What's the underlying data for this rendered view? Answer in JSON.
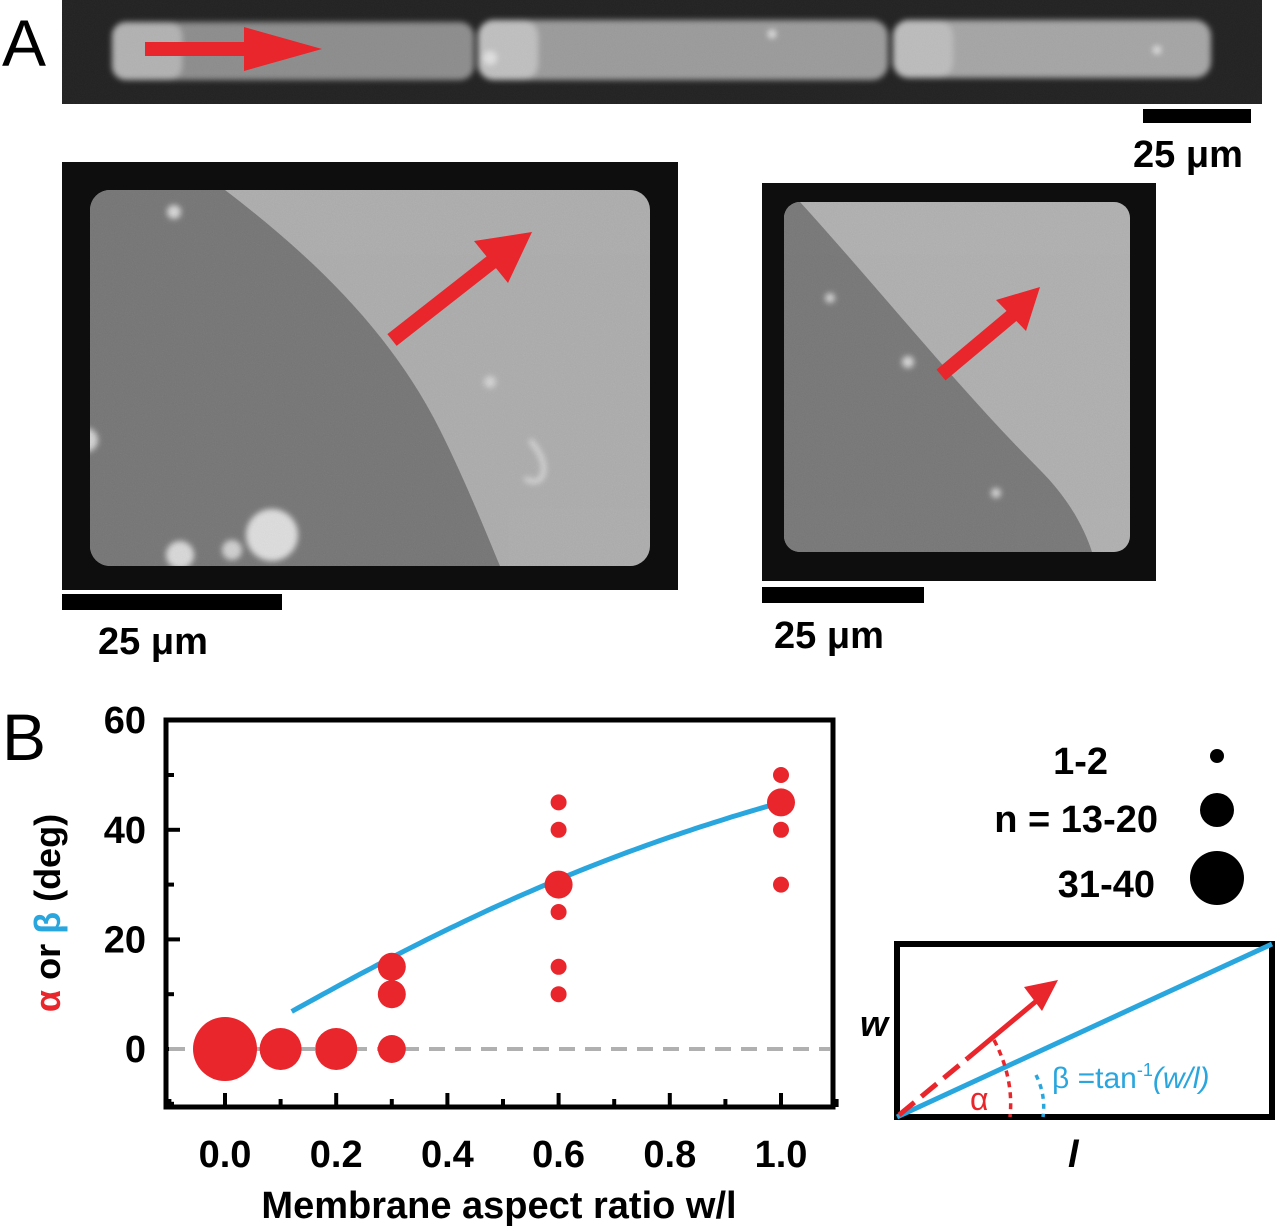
{
  "panel_a": {
    "label": "A",
    "scale_bar_label_top": "25 μm",
    "scale_bar_label_left": "25 μm",
    "scale_bar_label_right": "25 μm"
  },
  "panel_b": {
    "label": "B",
    "size_legend": {
      "rows": [
        {
          "label": "1-2",
          "size_class": "small"
        },
        {
          "label": "n = 13-20",
          "size_class": "medium"
        },
        {
          "label": "31-40",
          "size_class": "large"
        }
      ]
    },
    "inset": {
      "w_label": "w",
      "l_label": "l",
      "alpha_label": "α",
      "beta_label": "β =tan",
      "beta_sup": "-1",
      "beta_arg": "(w/l)",
      "colors": {
        "alpha": "#e8262b",
        "beta": "#2aa6de"
      }
    }
  },
  "chart_data": {
    "type": "scatter",
    "xlabel": "Membrane aspect ratio w/l",
    "ylabel_parts": [
      "α",
      " or ",
      "β",
      " (deg)"
    ],
    "xlim": [
      -0.1,
      1.1
    ],
    "ylim": [
      -10,
      60
    ],
    "x_ticks": [
      "0.0",
      "0.2",
      "0.4",
      "0.6",
      "0.8",
      "1.0"
    ],
    "x_tick_values": [
      0.0,
      0.2,
      0.4,
      0.6,
      0.8,
      1.0
    ],
    "y_ticks": [
      "0",
      "20",
      "40",
      "60"
    ],
    "y_tick_values": [
      0,
      20,
      40,
      60
    ],
    "points": [
      {
        "x": 0.0,
        "y": 0,
        "n_class": "large"
      },
      {
        "x": 0.1,
        "y": 0,
        "n_class": "medium-large"
      },
      {
        "x": 0.2,
        "y": 0,
        "n_class": "medium-large"
      },
      {
        "x": 0.3,
        "y": 0,
        "n_class": "medium"
      },
      {
        "x": 0.3,
        "y": 10,
        "n_class": "medium"
      },
      {
        "x": 0.3,
        "y": 15,
        "n_class": "medium"
      },
      {
        "x": 0.6,
        "y": 10,
        "n_class": "small"
      },
      {
        "x": 0.6,
        "y": 15,
        "n_class": "small"
      },
      {
        "x": 0.6,
        "y": 25,
        "n_class": "small"
      },
      {
        "x": 0.6,
        "y": 30,
        "n_class": "medium"
      },
      {
        "x": 0.6,
        "y": 40,
        "n_class": "small"
      },
      {
        "x": 0.6,
        "y": 45,
        "n_class": "small"
      },
      {
        "x": 1.0,
        "y": 30,
        "n_class": "small"
      },
      {
        "x": 1.0,
        "y": 40,
        "n_class": "small"
      },
      {
        "x": 1.0,
        "y": 45,
        "n_class": "medium"
      },
      {
        "x": 1.0,
        "y": 50,
        "n_class": "small"
      }
    ],
    "curve": {
      "formula": "atan(x) in degrees",
      "x_range": [
        0.12,
        1.0
      ]
    },
    "reference_line": {
      "y": 0
    },
    "colors": {
      "points": "#e8262b",
      "curve": "#2aa6de",
      "reference": "#b0b0b0"
    }
  }
}
